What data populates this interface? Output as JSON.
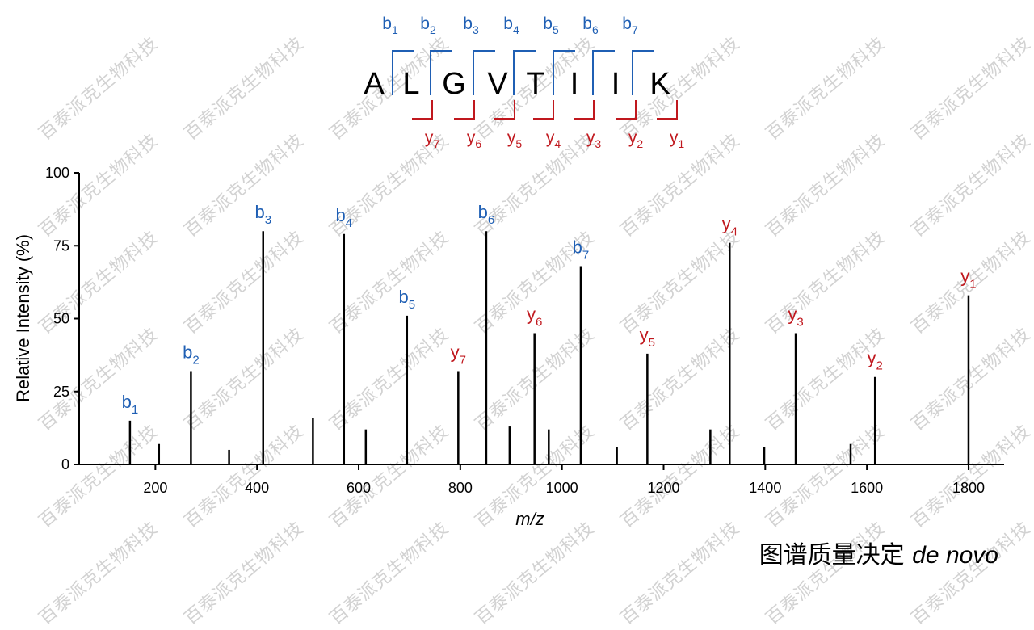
{
  "watermark_text": "百泰派克生物科技",
  "caption": {
    "main": "图谱质量决定",
    "italic": "de novo"
  },
  "peptide": {
    "sequence": [
      "A",
      "L",
      "G",
      "V",
      "T",
      "I",
      "I",
      "K"
    ],
    "b_ions": [
      "b1",
      "b2",
      "b3",
      "b4",
      "b5",
      "b6",
      "b7"
    ],
    "y_ions": [
      "y7",
      "y6",
      "y5",
      "y4",
      "y3",
      "y2",
      "y1"
    ]
  },
  "colors": {
    "b_ion": "#1f5fb4",
    "y_ion": "#c0181e",
    "peak": "#000000"
  },
  "chart_data": {
    "type": "bar",
    "xlabel": "m/z",
    "ylabel": "Relative Intensity (%)",
    "xlim": [
      50,
      1870
    ],
    "ylim": [
      0,
      100
    ],
    "x_ticks": [
      200,
      400,
      600,
      800,
      1000,
      1200,
      1400,
      1600,
      1800
    ],
    "y_ticks": [
      0,
      25,
      50,
      75,
      100
    ],
    "peaks": [
      {
        "mz": 150,
        "intensity": 15,
        "label": "b1",
        "ion": "b"
      },
      {
        "mz": 207,
        "intensity": 7
      },
      {
        "mz": 270,
        "intensity": 32,
        "label": "b2",
        "ion": "b"
      },
      {
        "mz": 345,
        "intensity": 5
      },
      {
        "mz": 412,
        "intensity": 80,
        "label": "b3",
        "ion": "b"
      },
      {
        "mz": 510,
        "intensity": 16
      },
      {
        "mz": 571,
        "intensity": 79,
        "label": "b4",
        "ion": "b"
      },
      {
        "mz": 614,
        "intensity": 12
      },
      {
        "mz": 695,
        "intensity": 51,
        "label": "b5",
        "ion": "b"
      },
      {
        "mz": 796,
        "intensity": 32,
        "label": "y7",
        "ion": "y"
      },
      {
        "mz": 851,
        "intensity": 80,
        "label": "b6",
        "ion": "b"
      },
      {
        "mz": 897,
        "intensity": 13
      },
      {
        "mz": 946,
        "intensity": 45,
        "label": "y6",
        "ion": "y"
      },
      {
        "mz": 974,
        "intensity": 12
      },
      {
        "mz": 1037,
        "intensity": 68,
        "label": "b7",
        "ion": "b"
      },
      {
        "mz": 1108,
        "intensity": 6
      },
      {
        "mz": 1168,
        "intensity": 38,
        "label": "y5",
        "ion": "y"
      },
      {
        "mz": 1292,
        "intensity": 12
      },
      {
        "mz": 1330,
        "intensity": 76,
        "label": "y4",
        "ion": "y"
      },
      {
        "mz": 1398,
        "intensity": 6
      },
      {
        "mz": 1460,
        "intensity": 45,
        "label": "y3",
        "ion": "y"
      },
      {
        "mz": 1568,
        "intensity": 7
      },
      {
        "mz": 1616,
        "intensity": 30,
        "label": "y2",
        "ion": "y"
      },
      {
        "mz": 1800,
        "intensity": 58,
        "label": "y1",
        "ion": "y"
      }
    ]
  }
}
